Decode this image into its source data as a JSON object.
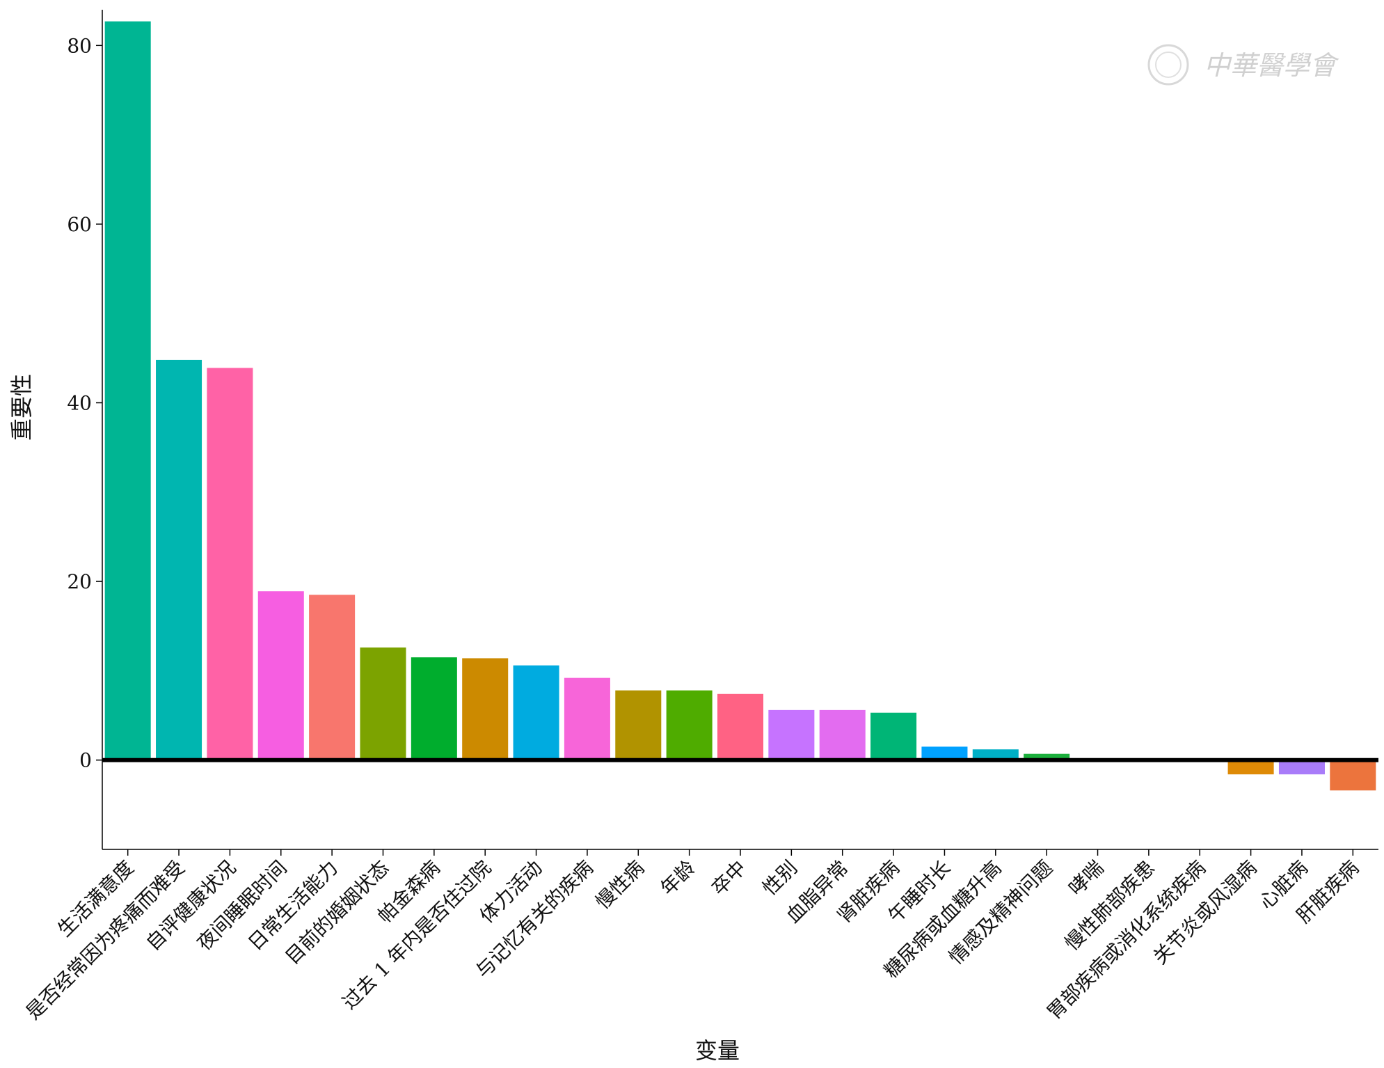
{
  "watermark": {
    "text": "中華醫學會"
  },
  "chart_data": {
    "type": "bar",
    "xlabel": "变量",
    "ylabel": "重要性",
    "ylim": [
      -10,
      84
    ],
    "yticks": [
      0,
      20,
      40,
      60,
      80
    ],
    "grid": false,
    "categories": [
      "生活满意度",
      "是否经常因为疼痛而难受",
      "自评健康状况",
      "夜间睡眠时间",
      "日常生活能力",
      "目前的婚姻状态",
      "帕金森病",
      "过去 1 年内是否住过院",
      "体力活动",
      "与记忆有关的疾病",
      "慢性病",
      "年龄",
      "卒中",
      "性别",
      "血脂异常",
      "肾脏疾病",
      "午睡时长",
      "糖尿病或血糖升高",
      "情感及精神问题",
      "哮喘",
      "慢性肺部疾患",
      "胃部疾病或消化系统疾病",
      "关节炎或风湿病",
      "心脏病",
      "肝脏疾病"
    ],
    "values": [
      82.7,
      44.8,
      43.9,
      18.9,
      18.5,
      12.6,
      11.5,
      11.4,
      10.6,
      9.2,
      7.8,
      7.8,
      7.4,
      5.6,
      5.6,
      5.3,
      1.5,
      1.2,
      0.7,
      0.2,
      0.0,
      0.0,
      -1.6,
      -1.6,
      -3.4
    ],
    "colors": [
      "#00b593",
      "#00b6b0",
      "#ff62a6",
      "#f65ee1",
      "#f8766d",
      "#7ca300",
      "#00ad2d",
      "#cc8a00",
      "#00abe0",
      "#f765d9",
      "#b19300",
      "#4fac00",
      "#ff6284",
      "#c673ff",
      "#e36cf0",
      "#00b576",
      "#00a1ff",
      "#00b0c6",
      "#1baf3c",
      "#6b8ff2",
      "#aaaaaa",
      "#aaaaaa",
      "#de8a06",
      "#a97cf9",
      "#ec743d"
    ]
  }
}
